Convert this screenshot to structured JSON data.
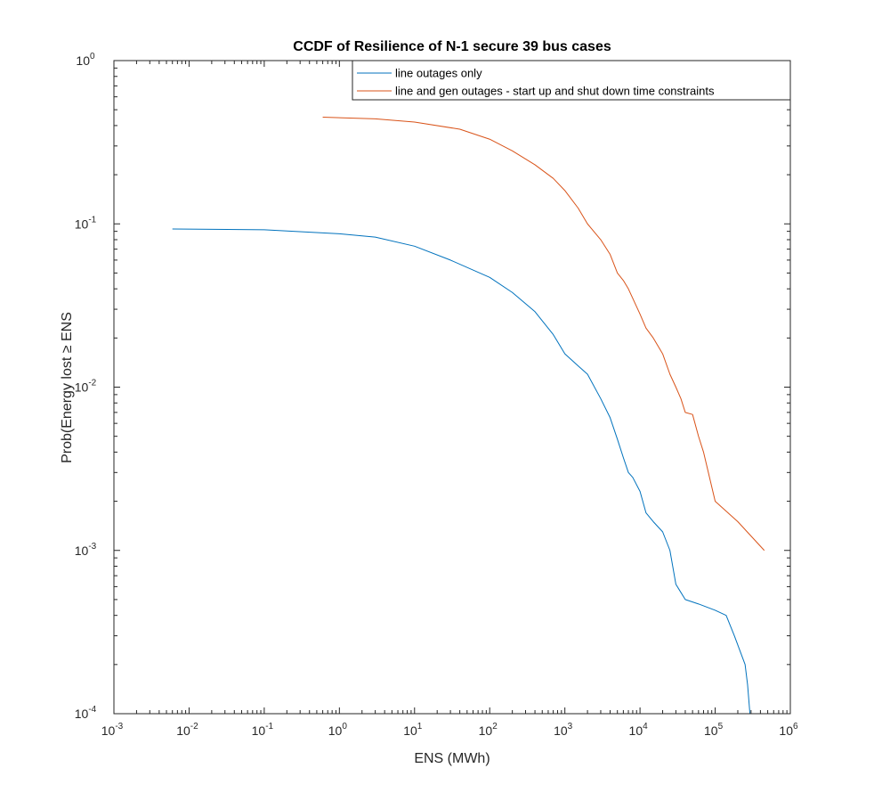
{
  "chart_data": {
    "type": "line",
    "title": "CCDF of Resilience of N-1 secure 39 bus cases",
    "xlabel": "ENS (MWh)",
    "ylabel": "Prob(Energy lost ≥ ENS",
    "xscale": "log",
    "yscale": "log",
    "xlim": [
      0.001,
      1000000
    ],
    "ylim": [
      0.0001,
      1
    ],
    "grid": false,
    "legend_position": "top-right",
    "xticks": [
      {
        "base": "10",
        "exp": "-3"
      },
      {
        "base": "10",
        "exp": "-2"
      },
      {
        "base": "10",
        "exp": "-1"
      },
      {
        "base": "10",
        "exp": "0"
      },
      {
        "base": "10",
        "exp": "1"
      },
      {
        "base": "10",
        "exp": "2"
      },
      {
        "base": "10",
        "exp": "3"
      },
      {
        "base": "10",
        "exp": "4"
      },
      {
        "base": "10",
        "exp": "5"
      },
      {
        "base": "10",
        "exp": "6"
      }
    ],
    "yticks": [
      {
        "base": "10",
        "exp": "-4"
      },
      {
        "base": "10",
        "exp": "-3"
      },
      {
        "base": "10",
        "exp": "-2"
      },
      {
        "base": "10",
        "exp": "-1"
      },
      {
        "base": "10",
        "exp": "0"
      }
    ],
    "series": [
      {
        "name": "line outages only",
        "color": "#0072BD",
        "x": [
          0.006,
          0.1,
          1,
          3,
          10,
          30,
          100,
          200,
          400,
          700,
          1000,
          1500,
          2000,
          3000,
          4000,
          5000,
          6000,
          7000,
          8000,
          10000,
          12000,
          15000,
          20000,
          25000,
          30000,
          40000,
          60000,
          100000,
          140000,
          180000,
          250000,
          270000,
          290000
        ],
        "y": [
          0.093,
          0.092,
          0.087,
          0.083,
          0.073,
          0.06,
          0.047,
          0.038,
          0.029,
          0.021,
          0.016,
          0.0135,
          0.012,
          0.0085,
          0.0065,
          0.0048,
          0.0037,
          0.003,
          0.0028,
          0.0023,
          0.0017,
          0.0015,
          0.0013,
          0.001,
          0.00062,
          0.0005,
          0.00047,
          0.00043,
          0.0004,
          0.0003,
          0.0002,
          0.00015,
          0.0001
        ]
      },
      {
        "name": "line and gen outages - start up and shut down time constraints",
        "color": "#D95319",
        "x": [
          0.6,
          3,
          10,
          40,
          100,
          200,
          400,
          700,
          1000,
          1500,
          2000,
          3000,
          4000,
          5000,
          6000,
          7000,
          8000,
          10000,
          12000,
          15000,
          20000,
          25000,
          30000,
          35000,
          40000,
          50000,
          60000,
          70000,
          100000,
          200000,
          450000
        ],
        "y": [
          0.45,
          0.44,
          0.42,
          0.38,
          0.33,
          0.28,
          0.23,
          0.19,
          0.16,
          0.125,
          0.1,
          0.08,
          0.065,
          0.05,
          0.045,
          0.04,
          0.035,
          0.028,
          0.023,
          0.02,
          0.016,
          0.012,
          0.01,
          0.0085,
          0.007,
          0.0068,
          0.005,
          0.004,
          0.002,
          0.0015,
          0.001
        ]
      }
    ]
  }
}
